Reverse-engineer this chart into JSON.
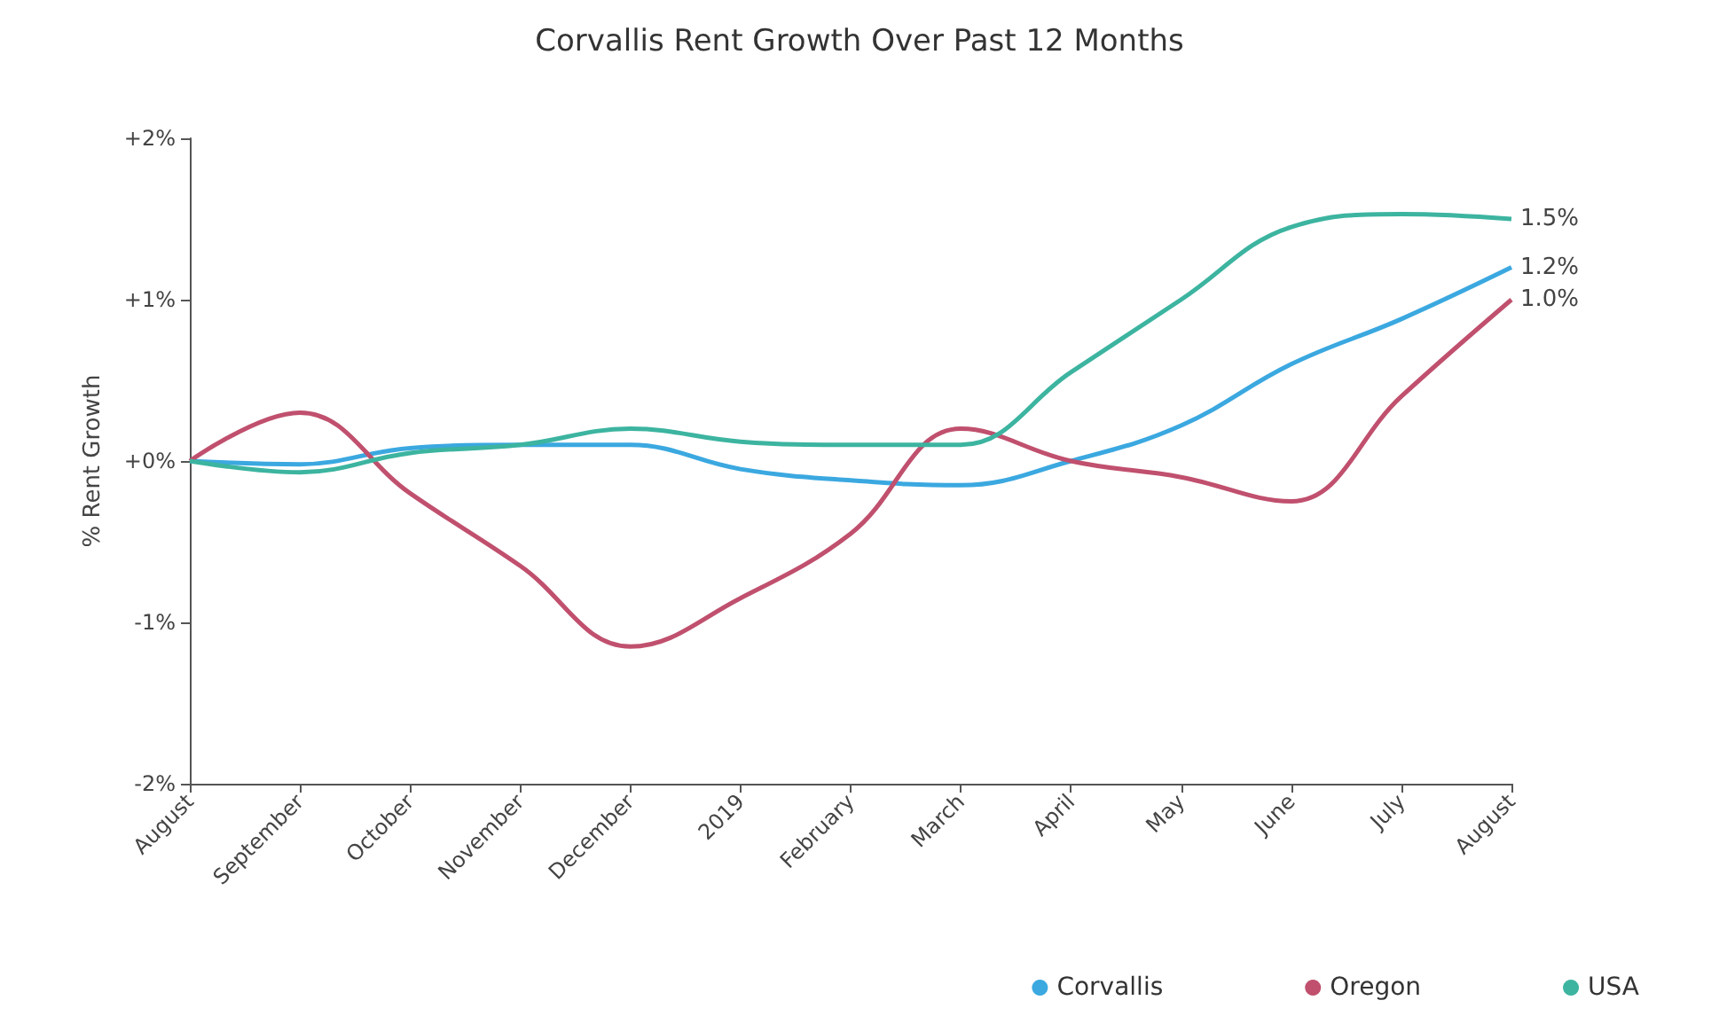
{
  "chart_data": {
    "type": "line",
    "title": "Corvallis Rent Growth Over Past 12 Months",
    "ylabel": "% Rent Growth",
    "categories": [
      "August",
      "September",
      "October",
      "November",
      "December",
      "2019",
      "February",
      "March",
      "April",
      "May",
      "June",
      "July",
      "August"
    ],
    "series": [
      {
        "name": "Corvallis",
        "color": "#3ba8e0",
        "values": [
          0,
          -0.02,
          0.08,
          0.1,
          0.1,
          -0.05,
          -0.12,
          -0.15,
          0.0,
          0.22,
          0.6,
          0.88,
          1.2
        ],
        "value_labels": [
          null,
          null,
          null,
          null,
          null,
          null,
          null,
          null,
          null,
          null,
          null,
          null,
          "1.2%"
        ]
      },
      {
        "name": "Oregon",
        "color": "#c0506e",
        "values": [
          0,
          0.3,
          -0.2,
          -0.65,
          -1.15,
          -0.85,
          -0.45,
          0.2,
          0.0,
          -0.1,
          -0.25,
          0.4,
          1.0
        ],
        "value_labels": [
          null,
          null,
          null,
          null,
          null,
          null,
          null,
          null,
          null,
          null,
          null,
          null,
          "1.0%"
        ]
      },
      {
        "name": "USA",
        "color": "#3cb4a0",
        "values": [
          0,
          -0.07,
          0.05,
          0.1,
          0.2,
          0.12,
          0.1,
          0.1,
          0.55,
          1.0,
          1.45,
          1.53,
          1.5
        ],
        "value_labels": [
          null,
          null,
          null,
          null,
          null,
          null,
          null,
          null,
          null,
          null,
          null,
          null,
          "1.5%"
        ]
      }
    ],
    "ylim": [
      -2,
      2
    ],
    "yticks": [
      {
        "value": -2,
        "label": "-2%"
      },
      {
        "value": -1,
        "label": "-1%"
      },
      {
        "value": 0,
        "label": "+0%"
      },
      {
        "value": 1,
        "label": "+1%"
      },
      {
        "value": 2,
        "label": "+2%"
      }
    ],
    "grid": false,
    "legend": "bottom right",
    "marker": "none",
    "line_style": "solid"
  }
}
